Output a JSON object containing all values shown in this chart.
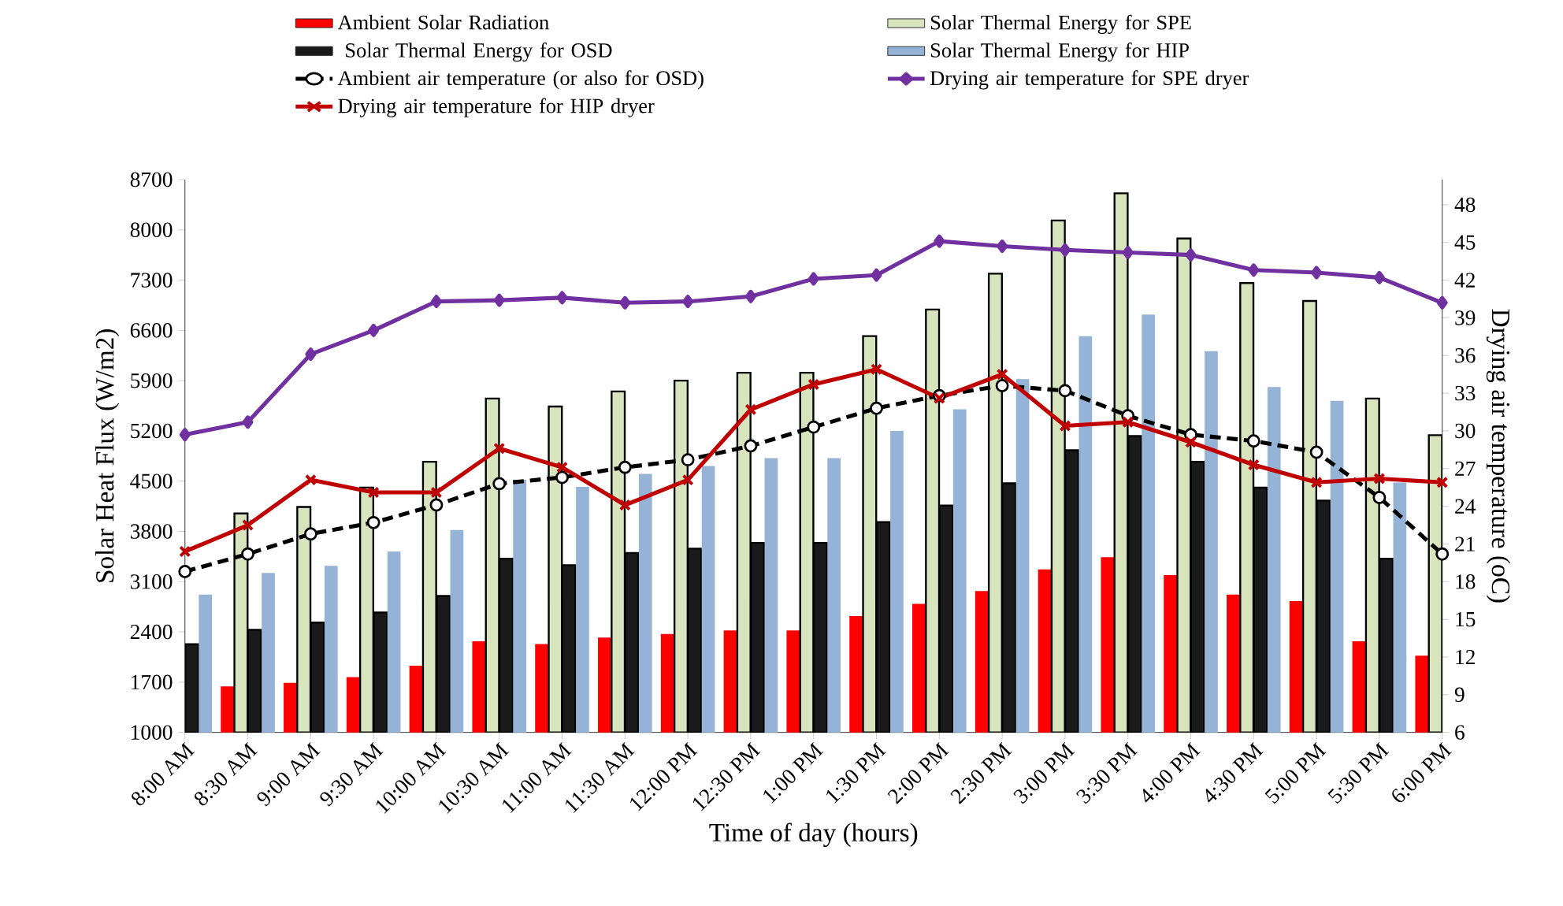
{
  "chart_data": {
    "type": "bar",
    "xlabel": "Time of day (hours)",
    "ylabel": "Solar Heat Flux (W/m2)",
    "y2label": "Drying air temperature (oC)",
    "legend": "top",
    "categories": [
      "8:00 AM",
      "8:30 AM",
      "9:00 AM",
      "9:30 AM",
      "10:00 AM",
      "10:30 AM",
      "11:00 AM",
      "11:30 AM",
      "12:00 PM",
      "12:30 PM",
      "1:00 PM",
      "1:30 PM",
      "2:00 PM",
      "2:30 PM",
      "3:00 PM",
      "3:30 PM",
      "4:00 PM",
      "4:30 PM",
      "5:00 PM",
      "5:30 PM",
      "6:00 PM"
    ],
    "ylim": [
      1000,
      8700
    ],
    "yticks": [
      1000,
      1700,
      2400,
      3100,
      3800,
      4500,
      5200,
      5900,
      6600,
      7300,
      8000,
      8700
    ],
    "y2lim": [
      6,
      50
    ],
    "y2ticks": [
      6,
      9,
      12,
      15,
      18,
      21,
      24,
      27,
      30,
      33,
      36,
      39,
      42,
      45,
      48
    ],
    "series": [
      {
        "name": "Ambient Solar Radiation",
        "color": "#ff0000",
        "values": [
          null,
          1640,
          1690,
          1770,
          1930,
          2270,
          2230,
          2320,
          2370,
          2420,
          2420,
          2620,
          2790,
          2970,
          3270,
          3440,
          3190,
          2920,
          2830,
          2270,
          2070
        ]
      },
      {
        "name": "Solar Thermal Energy for SPE",
        "color": "#d7e4bd",
        "values": [
          null,
          4050,
          4140,
          4410,
          4770,
          5650,
          5540,
          5750,
          5900,
          6010,
          6010,
          6520,
          6890,
          7390,
          8130,
          8510,
          7880,
          7260,
          7010,
          5650,
          5140
        ]
      },
      {
        "name": " Solar Thermal Energy for OSD",
        "color": "#1a1a1a",
        "values": [
          2230,
          2430,
          2530,
          2670,
          2900,
          3420,
          3330,
          3500,
          3560,
          3640,
          3640,
          3930,
          4160,
          4470,
          4930,
          5130,
          4770,
          4410,
          4230,
          3420,
          null
        ]
      },
      {
        "name": "Solar Thermal Energy for HIP",
        "color": "#95b3d7",
        "values": [
          2920,
          3220,
          3320,
          3520,
          3820,
          4520,
          4420,
          4600,
          4710,
          4820,
          4820,
          5200,
          5500,
          5920,
          6520,
          6820,
          6310,
          5810,
          5620,
          4480,
          null
        ]
      },
      {
        "name": "Ambient air temperature (or also for OSD)",
        "type": "line",
        "axis": "y2",
        "color": "#000000",
        "marker": "circle",
        "line_style": "dashed",
        "values": [
          18.8,
          20.2,
          21.8,
          22.7,
          24.1,
          25.8,
          26.3,
          27.1,
          27.7,
          28.8,
          30.3,
          31.8,
          32.8,
          33.6,
          33.2,
          31.2,
          29.7,
          29.2,
          28.3,
          24.7,
          20.2
        ]
      },
      {
        "name": "Drying air temperature for SPE dryer",
        "type": "line",
        "axis": "y2",
        "color": "#7030a0",
        "marker": "diamond",
        "line_style": "solid",
        "values": [
          29.7,
          30.7,
          36.1,
          38.0,
          40.3,
          40.4,
          40.6,
          40.2,
          40.3,
          40.7,
          42.1,
          42.4,
          45.1,
          44.7,
          44.4,
          44.2,
          44.0,
          42.8,
          42.6,
          42.2,
          40.2
        ]
      },
      {
        "name": "Drying air temperature for HIP dryer",
        "type": "line",
        "axis": "y2",
        "color": "#c00000",
        "marker": "cross",
        "line_style": "solid",
        "values": [
          20.4,
          22.5,
          26.1,
          25.1,
          25.1,
          28.6,
          27.1,
          24.1,
          26.1,
          31.7,
          33.7,
          34.9,
          32.6,
          34.5,
          30.4,
          30.7,
          29.1,
          27.3,
          25.9,
          26.2,
          25.9
        ]
      }
    ]
  }
}
